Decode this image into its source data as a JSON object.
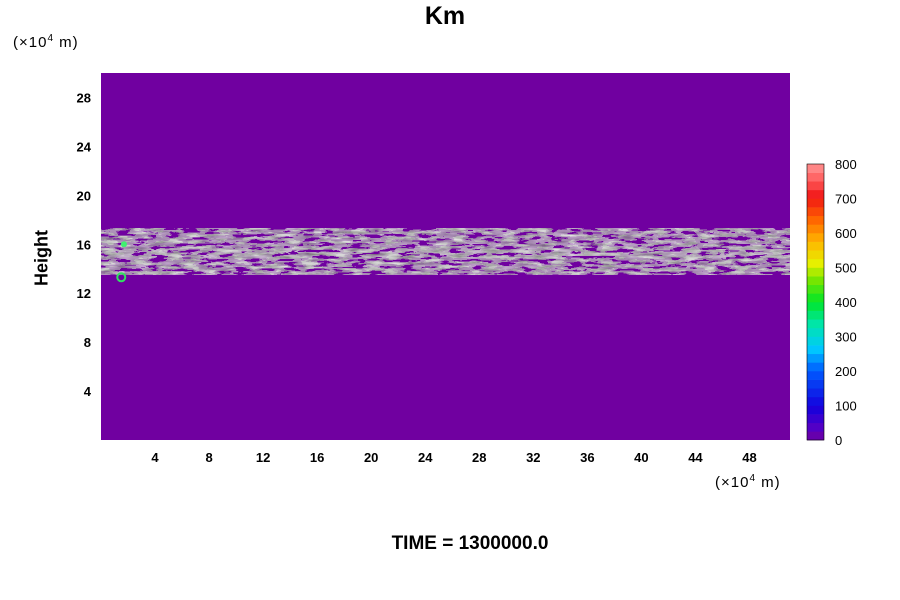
{
  "chart_data": {
    "type": "heatmap",
    "title": "Km",
    "ylabel": "Height",
    "y_unit": "(×10",
    "y_unit_exp": "4",
    "y_unit_tail": " m)",
    "x_unit": "(×10",
    "x_unit_exp": "4",
    "x_unit_tail": " m)",
    "x_ticks": [
      "4",
      "8",
      "12",
      "16",
      "20",
      "24",
      "28",
      "32",
      "36",
      "40",
      "44",
      "48"
    ],
    "y_ticks": [
      "4",
      "8",
      "12",
      "16",
      "20",
      "24",
      "28"
    ],
    "xlim": [
      0,
      51
    ],
    "ylim": [
      0,
      30
    ],
    "background_value": 0,
    "turbulent_layer": {
      "lower_edge_y": 13.5,
      "upper_edge_y": 17.3,
      "core_y": 15.3,
      "typical_values": [
        100,
        150,
        200,
        250,
        300
      ],
      "max_value_near_x": 1.5
    },
    "colorbar": {
      "ticks": [
        "0",
        "100",
        "200",
        "300",
        "400",
        "500",
        "600",
        "700",
        "800"
      ],
      "range": [
        0,
        800
      ],
      "step": 25
    },
    "time_label": "TIME = 1300000.0"
  }
}
